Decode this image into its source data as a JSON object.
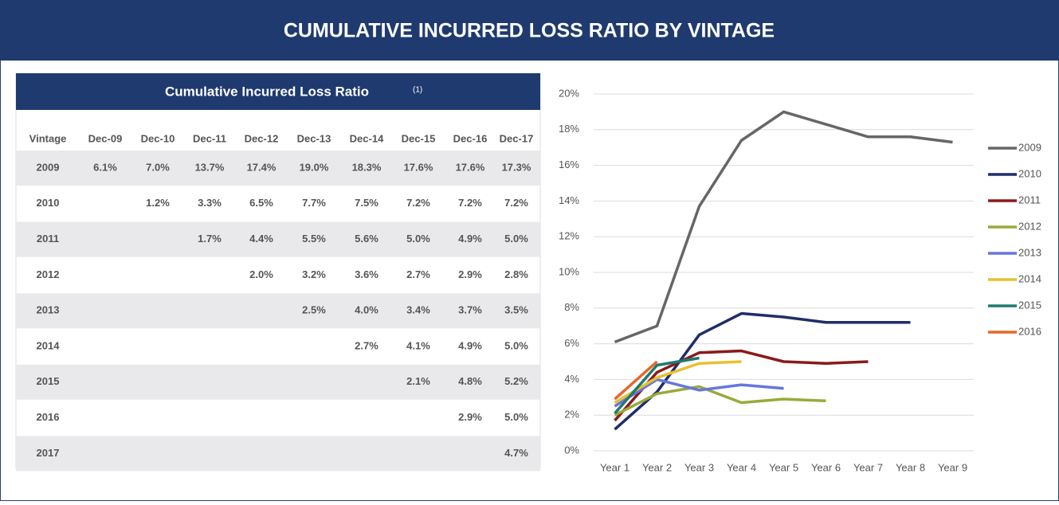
{
  "header": {
    "title": "CUMULATIVE INCURRED LOSS RATIO BY VINTAGE"
  },
  "table": {
    "title": "Cumulative Incurred Loss Ratio",
    "note_marker": "(1)",
    "columns": [
      "Vintage",
      "Dec-09",
      "Dec-10",
      "Dec-11",
      "Dec-12",
      "Dec-13",
      "Dec-14",
      "Dec-15",
      "Dec-16",
      "Dec-17"
    ],
    "rows": [
      {
        "vintage": "2009",
        "cells": [
          "6.1%",
          "7.0%",
          "13.7%",
          "17.4%",
          "19.0%",
          "18.3%",
          "17.6%",
          "17.6%",
          "17.3%"
        ]
      },
      {
        "vintage": "2010",
        "cells": [
          null,
          "1.2%",
          "3.3%",
          "6.5%",
          "7.7%",
          "7.5%",
          "7.2%",
          "7.2%",
          "7.2%"
        ]
      },
      {
        "vintage": "2011",
        "cells": [
          null,
          null,
          "1.7%",
          "4.4%",
          "5.5%",
          "5.6%",
          "5.0%",
          "4.9%",
          "5.0%"
        ]
      },
      {
        "vintage": "2012",
        "cells": [
          null,
          null,
          null,
          "2.0%",
          "3.2%",
          "3.6%",
          "2.7%",
          "2.9%",
          "2.8%"
        ]
      },
      {
        "vintage": "2013",
        "cells": [
          null,
          null,
          null,
          null,
          "2.5%",
          "4.0%",
          "3.4%",
          "3.7%",
          "3.5%"
        ]
      },
      {
        "vintage": "2014",
        "cells": [
          null,
          null,
          null,
          null,
          null,
          "2.7%",
          "4.1%",
          "4.9%",
          "5.0%"
        ]
      },
      {
        "vintage": "2015",
        "cells": [
          null,
          null,
          null,
          null,
          null,
          null,
          "2.1%",
          "4.8%",
          "5.2%"
        ]
      },
      {
        "vintage": "2016",
        "cells": [
          null,
          null,
          null,
          null,
          null,
          null,
          null,
          "2.9%",
          "5.0%"
        ]
      },
      {
        "vintage": "2017",
        "cells": [
          null,
          null,
          null,
          null,
          null,
          null,
          null,
          null,
          "4.7%"
        ]
      }
    ]
  },
  "chart_data": {
    "type": "line",
    "categories": [
      "Year 1",
      "Year 2",
      "Year 3",
      "Year 4",
      "Year 5",
      "Year 6",
      "Year 7",
      "Year 8",
      "Year 9"
    ],
    "series": [
      {
        "name": "2009",
        "color": "#666666",
        "values": [
          6.1,
          7.0,
          13.7,
          17.4,
          19.0,
          18.3,
          17.6,
          17.6,
          17.3
        ]
      },
      {
        "name": "2010",
        "color": "#1f2d6b",
        "values": [
          1.2,
          3.3,
          6.5,
          7.7,
          7.5,
          7.2,
          7.2,
          7.2,
          null
        ]
      },
      {
        "name": "2011",
        "color": "#8b1a1a",
        "values": [
          1.7,
          4.4,
          5.5,
          5.6,
          5.0,
          4.9,
          5.0,
          null,
          null
        ]
      },
      {
        "name": "2012",
        "color": "#9aaa3a",
        "values": [
          2.0,
          3.2,
          3.6,
          2.7,
          2.9,
          2.8,
          null,
          null,
          null
        ]
      },
      {
        "name": "2013",
        "color": "#6677dd",
        "values": [
          2.5,
          4.0,
          3.4,
          3.7,
          3.5,
          null,
          null,
          null,
          null
        ]
      },
      {
        "name": "2014",
        "color": "#e8c030",
        "values": [
          2.7,
          4.1,
          4.9,
          5.0,
          null,
          null,
          null,
          null,
          null
        ]
      },
      {
        "name": "2015",
        "color": "#1e7a70",
        "values": [
          2.1,
          4.8,
          5.2,
          null,
          null,
          null,
          null,
          null,
          null
        ]
      },
      {
        "name": "2016",
        "color": "#e8662c",
        "values": [
          2.9,
          5.0,
          null,
          null,
          null,
          null,
          null,
          null,
          null
        ]
      }
    ],
    "ylim": [
      0,
      20
    ],
    "yticks": [
      {
        "value": 0,
        "label": "0%"
      },
      {
        "value": 2,
        "label": "2%"
      },
      {
        "value": 4,
        "label": "4%"
      },
      {
        "value": 6,
        "label": "6%"
      },
      {
        "value": 8,
        "label": "8%"
      },
      {
        "value": 10,
        "label": "10%"
      },
      {
        "value": 12,
        "label": "12%"
      },
      {
        "value": 14,
        "label": "14%"
      },
      {
        "value": 16,
        "label": "16%"
      },
      {
        "value": 18,
        "label": "18%"
      },
      {
        "value": 20,
        "label": "20%"
      }
    ],
    "grid": true,
    "legend": "right"
  }
}
